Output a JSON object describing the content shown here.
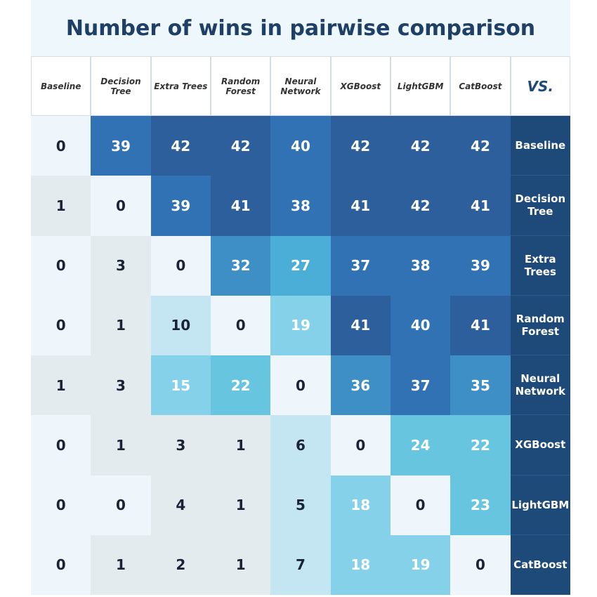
{
  "title": "Number of wins in pairwise comparison",
  "table": {
    "columns": [
      "Baseline",
      "Decision Tree",
      "Extra Trees",
      "Random Forest",
      "Neural Network",
      "XGBoost",
      "LightGBM",
      "CatBoost",
      "VS."
    ],
    "rows": [
      {
        "label": "Baseline",
        "cells": [
          0,
          39,
          42,
          42,
          40,
          42,
          42,
          42
        ]
      },
      {
        "label": "Decision Tree",
        "cells": [
          1,
          0,
          39,
          41,
          38,
          41,
          42,
          41
        ]
      },
      {
        "label": "Extra Trees",
        "cells": [
          0,
          3,
          0,
          32,
          27,
          37,
          38,
          39
        ]
      },
      {
        "label": "Random Forest",
        "cells": [
          0,
          1,
          10,
          0,
          19,
          41,
          40,
          41
        ]
      },
      {
        "label": "Neural Network",
        "cells": [
          1,
          3,
          15,
          22,
          0,
          36,
          37,
          35
        ]
      },
      {
        "label": "XGBoost",
        "cells": [
          0,
          1,
          3,
          1,
          6,
          0,
          24,
          22
        ]
      },
      {
        "label": "LightGBM",
        "cells": [
          0,
          0,
          4,
          1,
          5,
          18,
          0,
          23
        ]
      },
      {
        "label": "CatBoost",
        "cells": [
          0,
          1,
          2,
          1,
          7,
          18,
          19,
          0
        ]
      }
    ]
  }
}
